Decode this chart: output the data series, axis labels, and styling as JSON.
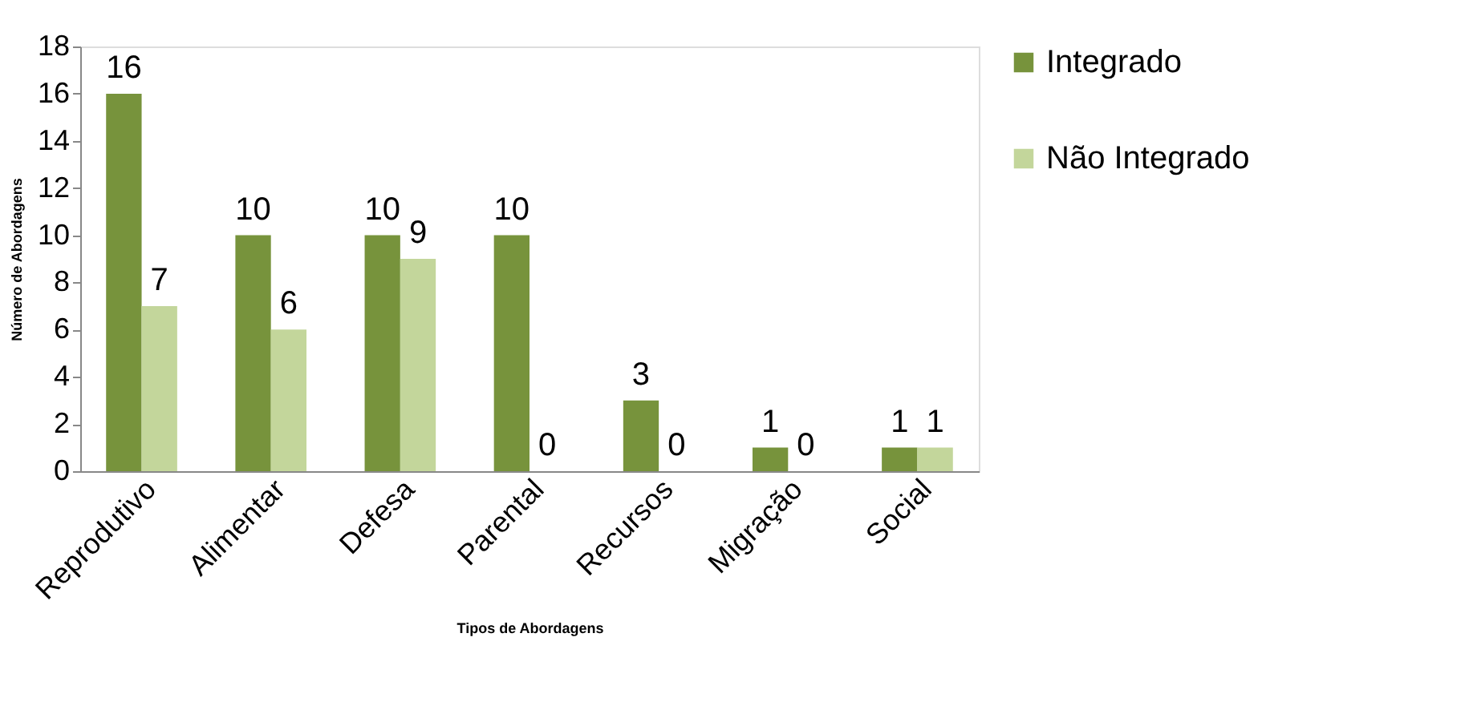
{
  "chart_data": {
    "type": "bar",
    "xlabel": "Tipos de Abordagens",
    "ylabel": "Número de Abordagens",
    "categories": [
      "Reprodutivo",
      "Alimentar",
      "Defesa",
      "Parental",
      "Recursos",
      "Migração",
      "Social"
    ],
    "series": [
      {
        "name": "Integrado",
        "color": "#77933c",
        "values": [
          16,
          10,
          10,
          10,
          3,
          1,
          1
        ]
      },
      {
        "name": "Não Integrado",
        "color": "#c3d69b",
        "values": [
          7,
          6,
          9,
          0,
          0,
          0,
          1
        ]
      }
    ],
    "ylim": [
      0,
      18
    ],
    "yticks": [
      0,
      2,
      4,
      6,
      8,
      10,
      12,
      14,
      16,
      18
    ],
    "grid": false,
    "legend": "right",
    "data_labels": true
  }
}
